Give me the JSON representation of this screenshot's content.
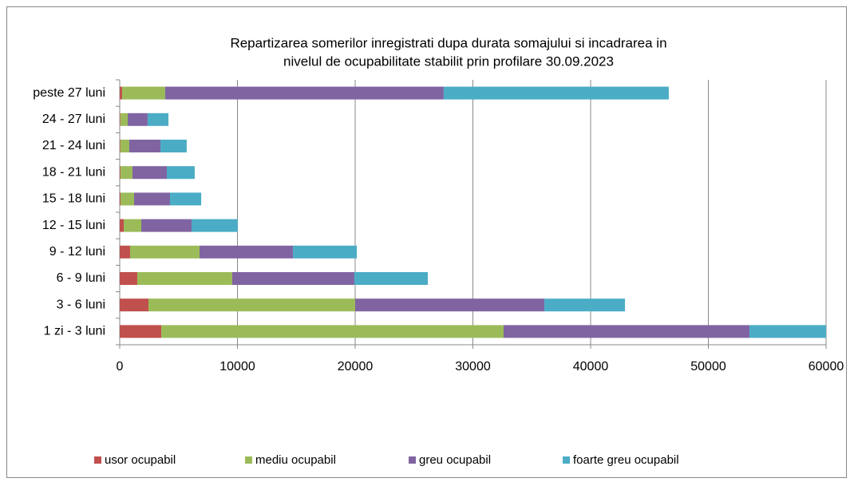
{
  "chart_data": {
    "type": "stacked-bar-horizontal",
    "title": [
      "Repartizarea somerilor inregistrati dupa  durata somajului si incadrarea in",
      "nivelul de ocupabilitate stabilit prin profilare 30.09.2023"
    ],
    "categories": [
      "peste 27 luni",
      "24 - 27 luni",
      "21 - 24 luni",
      "18 - 21 luni",
      "15 - 18 luni",
      "12 - 15 luni",
      "9 - 12 luni",
      "6 - 9 luni",
      "3 - 6 luni",
      "1 zi - 3 luni"
    ],
    "series": [
      {
        "name": "usor ocupabil",
        "color": "#c0504d",
        "values": [
          200,
          50,
          50,
          60,
          70,
          340,
          880,
          1490,
          2440,
          3530
        ]
      },
      {
        "name": "mediu ocupabil",
        "color": "#9bbb59",
        "values": [
          3660,
          630,
          760,
          1020,
          1150,
          1490,
          5900,
          8070,
          17560,
          29080
        ]
      },
      {
        "name": "greu ocupabil",
        "color": "#8064a2",
        "values": [
          23660,
          1690,
          2650,
          2920,
          3050,
          4270,
          7930,
          10370,
          16070,
          20880
        ]
      },
      {
        "name": "foarte greu ocupabil",
        "color": "#4bacc6",
        "values": [
          19120,
          1770,
          2230,
          2370,
          2650,
          3930,
          5430,
          6240,
          6850,
          6510
        ]
      }
    ],
    "xlim": [
      0,
      60000
    ],
    "xticks": [
      0,
      10000,
      20000,
      30000,
      40000,
      50000,
      60000
    ],
    "grid": true,
    "legend": "bottom"
  }
}
